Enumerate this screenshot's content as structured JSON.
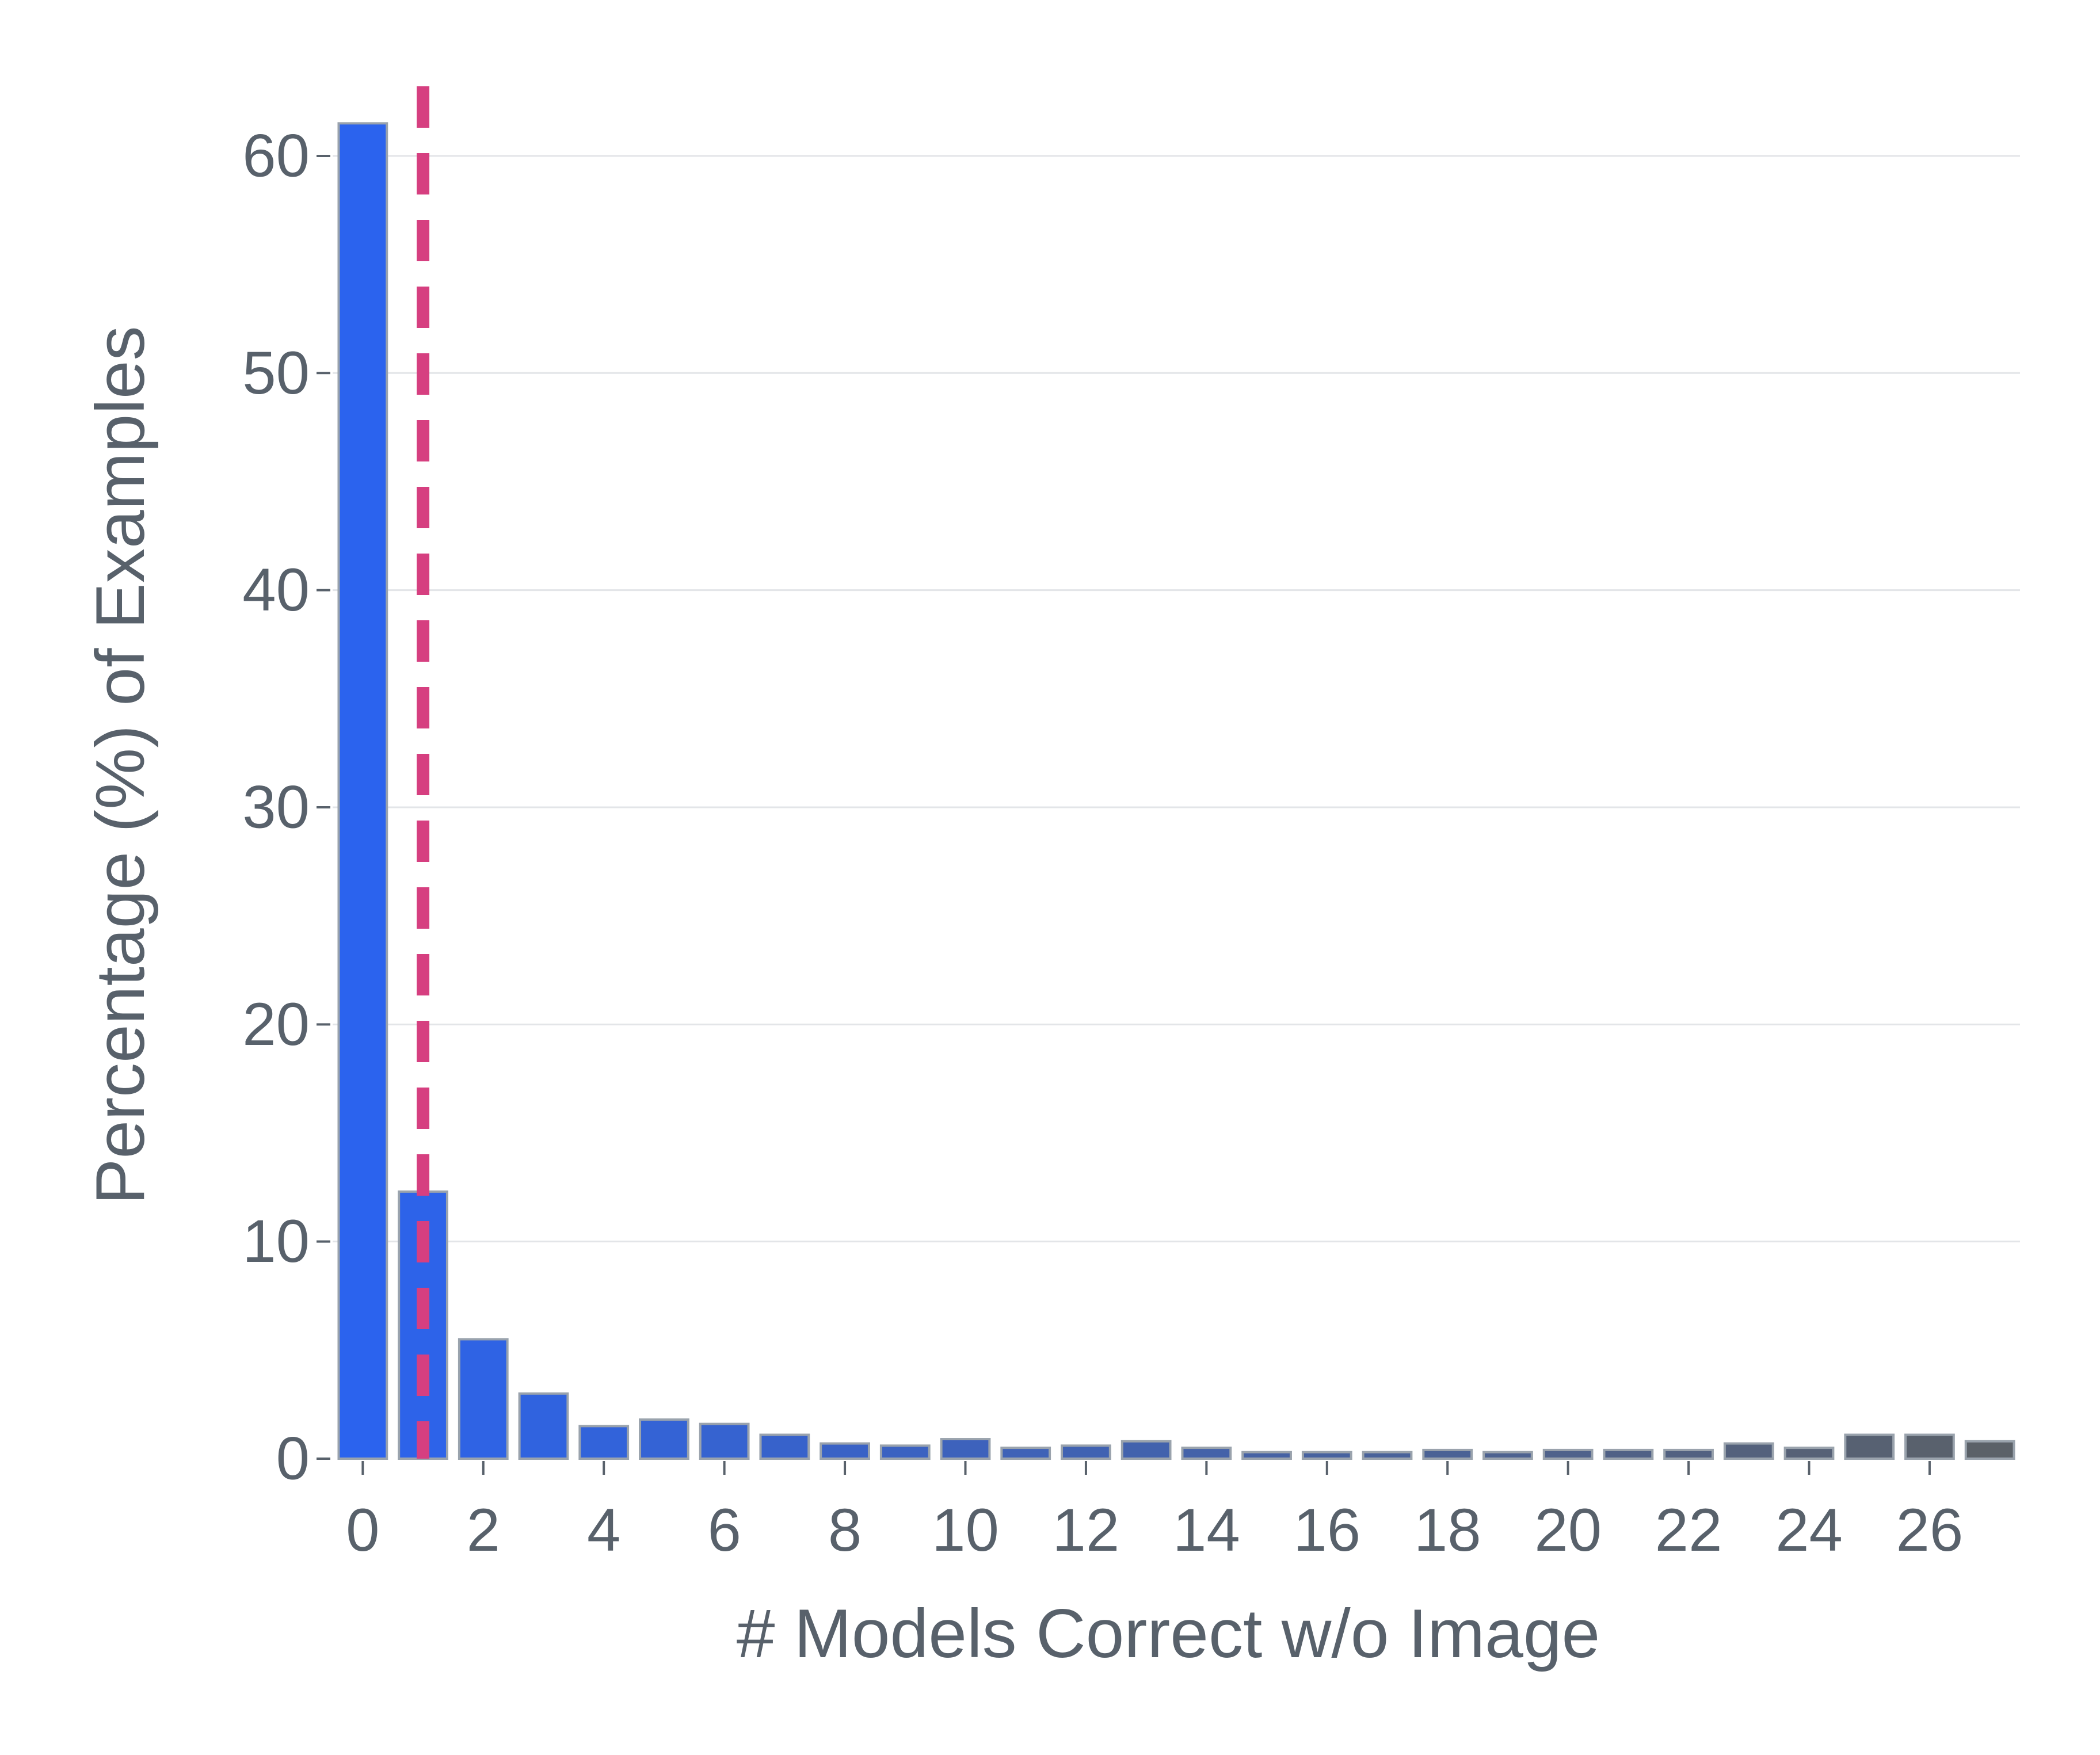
{
  "chart_data": {
    "type": "bar",
    "title": "",
    "xlabel": "# Models Correct w/o Image",
    "ylabel": "Percentage (%) of Examples",
    "x": [
      0,
      1,
      2,
      3,
      4,
      5,
      6,
      7,
      8,
      9,
      10,
      11,
      12,
      13,
      14,
      15,
      16,
      17,
      18,
      19,
      20,
      21,
      22,
      23,
      24,
      25,
      26,
      27
    ],
    "values": [
      61.5,
      12.3,
      5.5,
      3.0,
      1.5,
      1.8,
      1.6,
      1.1,
      0.7,
      0.6,
      0.9,
      0.5,
      0.6,
      0.8,
      0.5,
      0.3,
      0.3,
      0.3,
      0.4,
      0.3,
      0.4,
      0.4,
      0.4,
      0.7,
      0.5,
      1.1,
      1.1,
      0.8
    ],
    "xticks": [
      0,
      2,
      4,
      6,
      8,
      10,
      12,
      14,
      16,
      18,
      20,
      22,
      24,
      26
    ],
    "yticks": [
      0,
      10,
      20,
      30,
      40,
      50,
      60
    ],
    "xlim": [
      -0.5,
      27.5
    ],
    "ylim": [
      0,
      64
    ],
    "grid": "horizontal",
    "bar_colors": {
      "start": "#2b63ee",
      "end": "#5b6168"
    },
    "reference_line": {
      "x": 1,
      "style": "dashed",
      "color": "#d63f80"
    }
  }
}
